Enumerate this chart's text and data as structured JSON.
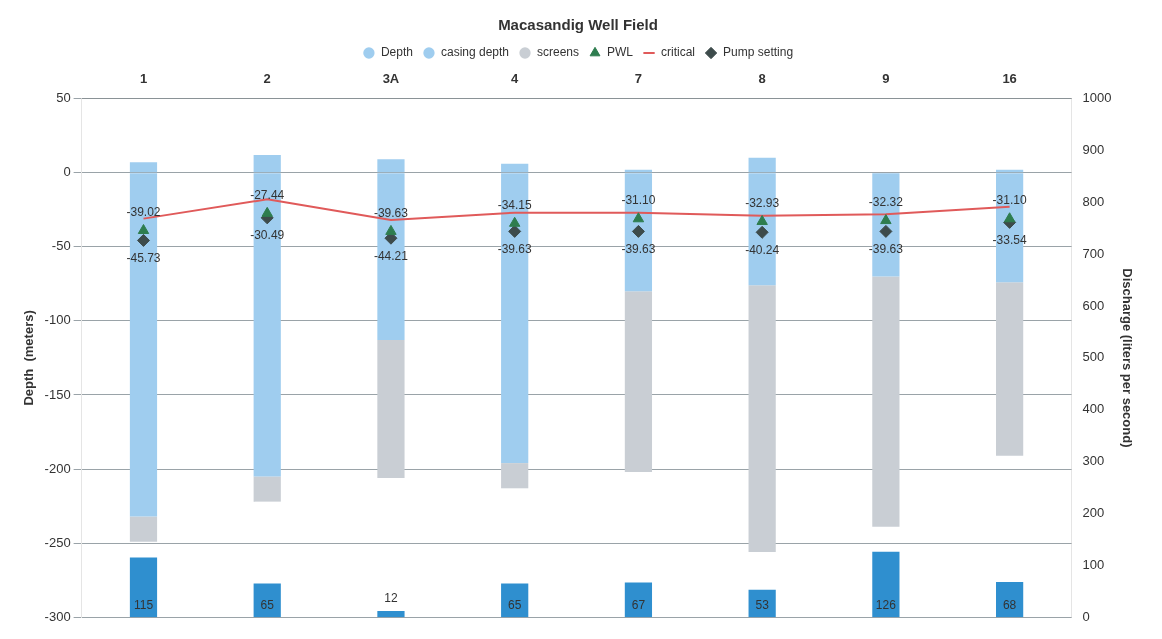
{
  "chart_data": {
    "type": "bar",
    "title": "Macasandig Well Field",
    "ylabel": "Depth  (meters)",
    "y2label": "Discharge (liters per second)",
    "categories": [
      "1",
      "2",
      "3A",
      "4",
      "7",
      "8",
      "9",
      "16"
    ],
    "stacked": true,
    "series": [
      {
        "name": "Depth",
        "color": "#9fcdef",
        "values": [
          7,
          12,
          9,
          6,
          2,
          10,
          0,
          2
        ]
      },
      {
        "name": "casing depth",
        "color": "#9fcdef",
        "values": [
          -232,
          -205,
          -113,
          -196,
          -80,
          -76,
          -70,
          -74
        ]
      },
      {
        "name": "screens",
        "color": "#c9ced4",
        "values": [
          -17,
          -17,
          -93,
          -17,
          -122,
          -180,
          -169,
          -117
        ]
      },
      {
        "color": "#2f8fcf",
        "axis": "y2",
        "values": [
          115,
          65,
          12,
          65,
          67,
          53,
          126,
          68
        ],
        "value_labels": [
          "115",
          "65",
          "12",
          "65",
          "67",
          "53",
          "126",
          "68"
        ]
      },
      {
        "name": "PWL",
        "type": "scatter",
        "marker": "triangle",
        "color": "#2e7d4f",
        "values": [
          -39.02,
          -27.44,
          -39.63,
          -34.15,
          -31.1,
          -32.93,
          -32.32,
          -31.1
        ],
        "value_labels": [
          "-39.02",
          "-27.44",
          "-39.63",
          "-34.15",
          "-31.10",
          "-32.93",
          "-32.32",
          "-31.10"
        ]
      },
      {
        "name": "critical",
        "type": "line",
        "color": "#e05a5a",
        "values": [
          -31,
          -18,
          -32,
          -27,
          -27,
          -29,
          -28,
          -23
        ]
      },
      {
        "name": "Pump setting",
        "type": "scatter",
        "marker": "diamond",
        "color": "#3d4b4b",
        "values": [
          -45.73,
          -30.49,
          -44.21,
          -39.63,
          -39.63,
          -40.24,
          -39.63,
          -33.54
        ],
        "value_labels": [
          "-45.73",
          "-30.49",
          "-44.21",
          "-39.63",
          "-39.63",
          "-40.24",
          "-39.63",
          "-33.54"
        ]
      }
    ],
    "ylim": [
      -300,
      50
    ],
    "yticks": [
      -300,
      -250,
      -200,
      -150,
      -100,
      -50,
      0,
      50
    ],
    "y2lim": [
      0,
      1000
    ],
    "y2ticks": [
      0,
      100,
      200,
      300,
      400,
      500,
      600,
      700,
      800,
      900,
      1000
    ],
    "grid": "y",
    "legend": "top"
  }
}
